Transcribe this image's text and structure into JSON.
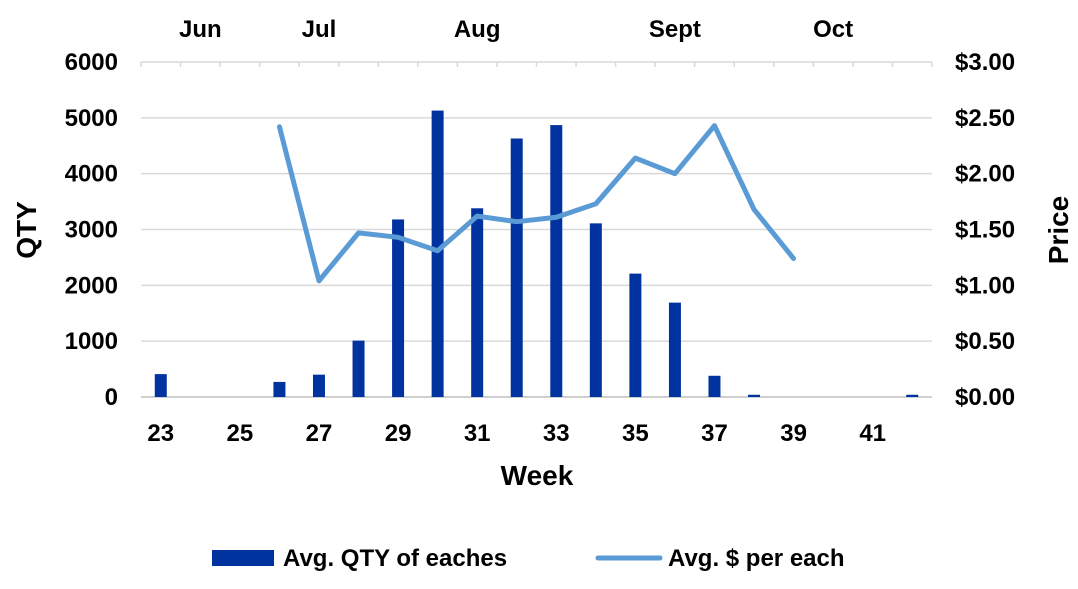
{
  "chart_data": {
    "type": "bar",
    "xlabel": "Week",
    "ylabel": "QTY",
    "y2label": "Price",
    "x": [
      23,
      24,
      25,
      26,
      27,
      28,
      29,
      30,
      31,
      32,
      33,
      34,
      35,
      36,
      37,
      38,
      39,
      40,
      41,
      42
    ],
    "x_tick_labels": [
      "23",
      "25",
      "27",
      "29",
      "31",
      "33",
      "35",
      "37",
      "39",
      "41"
    ],
    "x_tick_values": [
      23,
      25,
      27,
      29,
      31,
      33,
      35,
      37,
      39,
      41
    ],
    "month_labels": [
      {
        "label": "Jun",
        "week": 24
      },
      {
        "label": "Jul",
        "week": 27
      },
      {
        "label": "Aug",
        "week": 31
      },
      {
        "label": "Sept",
        "week": 36
      },
      {
        "label": "Oct",
        "week": 40
      }
    ],
    "ylim": [
      0,
      6000
    ],
    "y_ticks": [
      0,
      1000,
      2000,
      3000,
      4000,
      5000,
      6000
    ],
    "y2lim": [
      0,
      3.0
    ],
    "y2_ticks": [
      0,
      0.5,
      1.0,
      1.5,
      2.0,
      2.5,
      3.0
    ],
    "y2_tick_labels": [
      "$0.00",
      "$0.50",
      "$1.00",
      "$1.50",
      "$2.00",
      "$2.50",
      "$3.00"
    ],
    "grid": true,
    "legend_position": "bottom",
    "series": [
      {
        "name": "Avg. QTY of eaches",
        "kind": "bar",
        "axis": "left",
        "color": "#0033A0",
        "values": [
          410,
          0,
          0,
          270,
          400,
          1010,
          3180,
          5130,
          3380,
          4630,
          4870,
          3110,
          2210,
          1690,
          380,
          40,
          0,
          0,
          0,
          40
        ]
      },
      {
        "name": "Avg. $ per each",
        "kind": "line",
        "axis": "right",
        "color": "#5B9BD5",
        "values": [
          null,
          null,
          null,
          2.42,
          1.04,
          1.47,
          1.43,
          1.31,
          1.62,
          1.57,
          1.61,
          1.73,
          2.14,
          2.0,
          2.43,
          1.68,
          1.24,
          null,
          null,
          null
        ]
      }
    ]
  }
}
